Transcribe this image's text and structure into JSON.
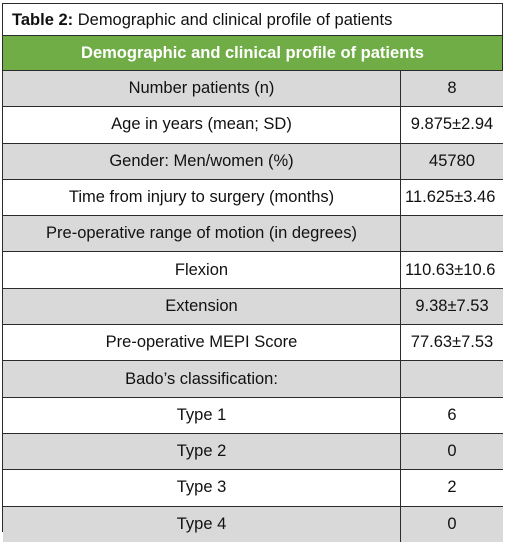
{
  "caption": {
    "prefix": "Table 2:",
    "text": " Demographic and clinical profile of patients"
  },
  "header": "Demographic and clinical profile of patients",
  "rows": [
    {
      "label": "Number patients (n)",
      "value": "8"
    },
    {
      "label": "Age in years (mean; SD)",
      "value": "9.875±2.94"
    },
    {
      "label": "Gender: Men/women (%)",
      "value": "45780"
    },
    {
      "label": "Time from injury to surgery (months)",
      "value": "11.625±3.46"
    },
    {
      "label": "Pre-operative range of motion (in degrees)",
      "value": ""
    },
    {
      "label": "Flexion",
      "value": "110.63±10.6"
    },
    {
      "label": "Extension",
      "value": "9.38±7.53"
    },
    {
      "label": "Pre-operative MEPI Score",
      "value": "77.63±7.53"
    },
    {
      "label": "Bado’s classification:",
      "value": ""
    },
    {
      "label": "Type 1",
      "value": "6"
    },
    {
      "label": "Type 2",
      "value": "0"
    },
    {
      "label": "Type 3",
      "value": "2"
    },
    {
      "label": "Type 4",
      "value": "0"
    }
  ],
  "colors": {
    "header_band": "#70ad47",
    "row_shade": "#d9d9d9",
    "border": "#2b2b2b"
  }
}
